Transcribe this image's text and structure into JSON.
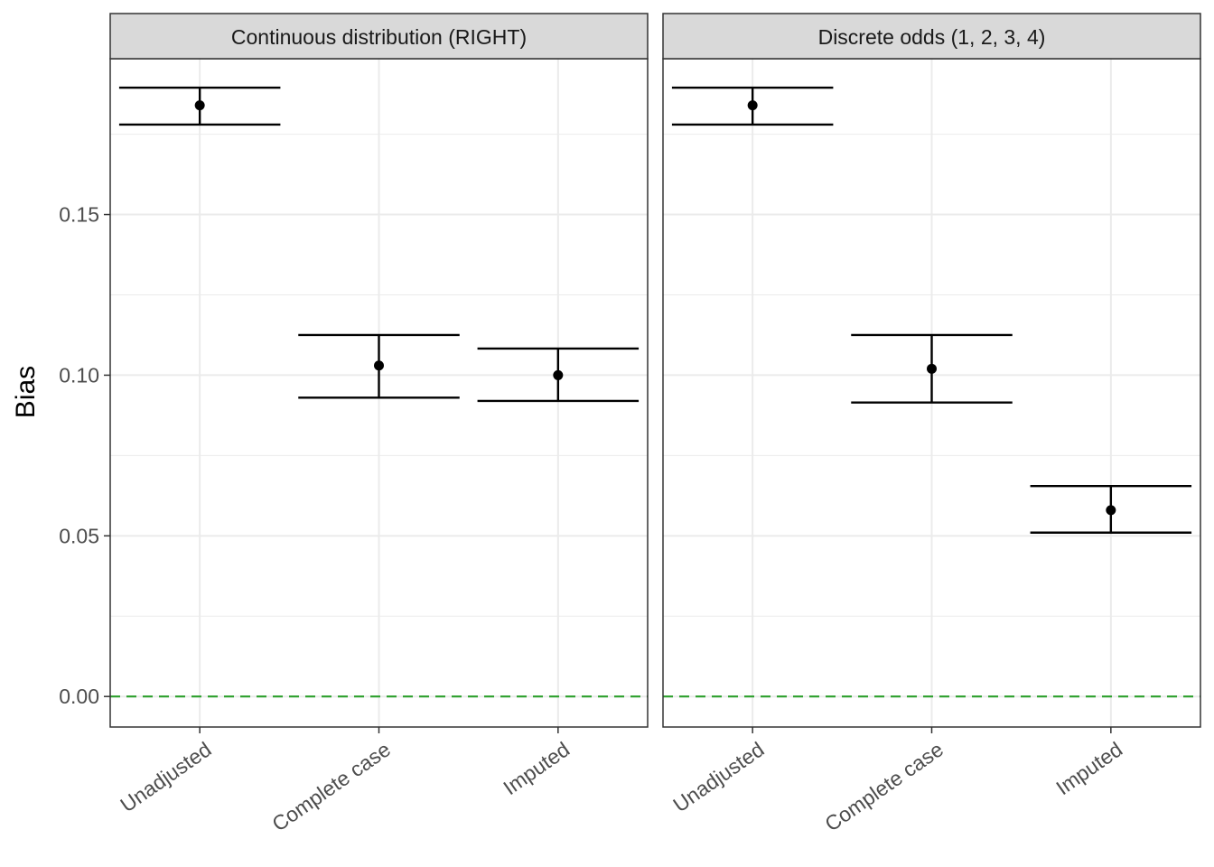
{
  "chart_data": {
    "type": "errorbar",
    "ylabel": "Bias",
    "ylim": [
      -0.0095,
      0.1985
    ],
    "yticks": [
      0.0,
      0.05,
      0.1,
      0.15
    ],
    "ytick_labels": [
      "0.00",
      "0.05",
      "0.10",
      "0.15"
    ],
    "categories": [
      "Unadjusted",
      "Complete case",
      "Imputed"
    ],
    "reference_line": {
      "y": 0,
      "color": "#2ca02c",
      "style": "dashed"
    },
    "grid": true,
    "panels": [
      {
        "title": "Continuous distribution (RIGHT)",
        "points": [
          {
            "category": "Unadjusted",
            "estimate": 0.184,
            "lower": 0.178,
            "upper": 0.1895
          },
          {
            "category": "Complete case",
            "estimate": 0.103,
            "lower": 0.093,
            "upper": 0.1125
          },
          {
            "category": "Imputed",
            "estimate": 0.1,
            "lower": 0.092,
            "upper": 0.1083
          }
        ]
      },
      {
        "title": "Discrete odds (1, 2, 3, 4)",
        "points": [
          {
            "category": "Unadjusted",
            "estimate": 0.184,
            "lower": 0.178,
            "upper": 0.1895
          },
          {
            "category": "Complete case",
            "estimate": 0.102,
            "lower": 0.0915,
            "upper": 0.1125
          },
          {
            "category": "Imputed",
            "estimate": 0.058,
            "lower": 0.051,
            "upper": 0.0655
          }
        ]
      }
    ]
  }
}
